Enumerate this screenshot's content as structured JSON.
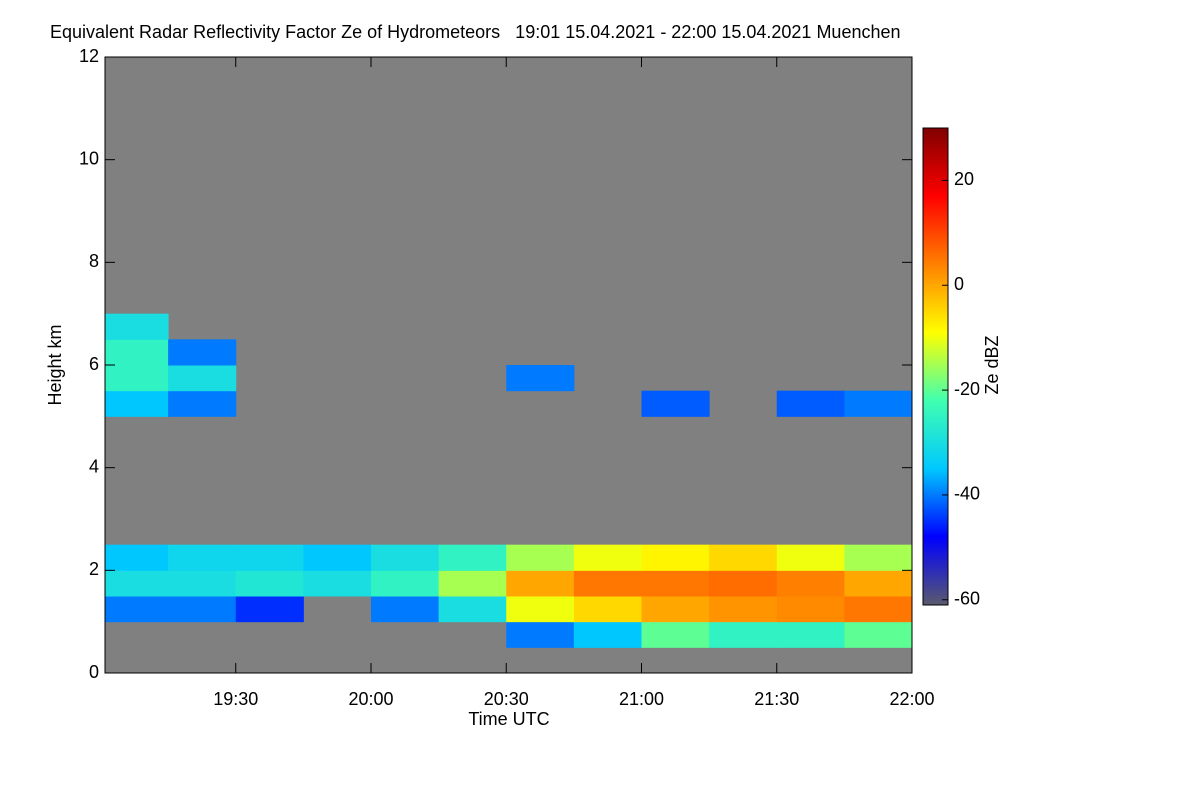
{
  "chart_data": {
    "type": "heatmap",
    "title": "Equivalent Radar Reflectivity Factor Ze of Hydrometeors   19:01 15.04.2021 - 22:00 15.04.2021 Muenchen",
    "x_label": "Time UTC",
    "y_label": "Height km",
    "colorbar_label": "Ze dBZ",
    "xlim": [
      19.0167,
      22.0
    ],
    "xticks": [
      {
        "value": 19.5,
        "label": "19:30"
      },
      {
        "value": 20.0,
        "label": "20:00"
      },
      {
        "value": 20.5,
        "label": "20:30"
      },
      {
        "value": 21.0,
        "label": "21:00"
      },
      {
        "value": 21.5,
        "label": "21:30"
      },
      {
        "value": 22.0,
        "label": "22:00"
      }
    ],
    "ylim": [
      0,
      12
    ],
    "yticks": [
      0,
      2,
      4,
      6,
      8,
      10,
      12
    ],
    "x_bins": [
      19.0,
      19.25,
      19.5,
      19.75,
      20.0,
      20.25,
      20.5,
      20.75,
      21.0,
      21.25,
      21.5,
      21.75,
      22.0
    ],
    "y_bins": [
      0,
      0.5,
      1,
      1.5,
      2,
      2.5,
      3,
      3.5,
      4,
      4.5,
      5,
      5.5,
      6,
      6.5,
      7
    ],
    "z": [
      [
        null,
        null,
        null,
        null,
        null,
        null,
        null,
        null,
        null,
        null,
        null,
        null
      ],
      [
        null,
        null,
        null,
        null,
        null,
        null,
        -40,
        -35,
        -20,
        -25,
        -25,
        -20
      ],
      [
        -40,
        -40,
        -45,
        null,
        -40,
        -30,
        -10,
        -5,
        0,
        2,
        3,
        5
      ],
      [
        -30,
        -30,
        -28,
        -30,
        -25,
        -15,
        0,
        5,
        5,
        6,
        4,
        0
      ],
      [
        -35,
        -32,
        -32,
        -35,
        -30,
        -25,
        -15,
        -10,
        -8,
        -5,
        -10,
        -15
      ],
      [
        null,
        null,
        null,
        null,
        null,
        null,
        null,
        null,
        null,
        null,
        null,
        null
      ],
      [
        null,
        null,
        null,
        null,
        null,
        null,
        null,
        null,
        null,
        null,
        null,
        null
      ],
      [
        null,
        null,
        null,
        null,
        null,
        null,
        null,
        null,
        null,
        null,
        null,
        null
      ],
      [
        null,
        null,
        null,
        null,
        null,
        null,
        null,
        null,
        null,
        null,
        null,
        null
      ],
      [
        null,
        null,
        null,
        null,
        null,
        null,
        null,
        null,
        null,
        null,
        null,
        null
      ],
      [
        -35,
        -40,
        null,
        null,
        null,
        null,
        null,
        null,
        -42,
        null,
        -42,
        -40
      ],
      [
        -25,
        -30,
        null,
        null,
        null,
        null,
        -40,
        null,
        null,
        null,
        null,
        null
      ],
      [
        -25,
        -40,
        null,
        null,
        null,
        null,
        null,
        null,
        null,
        null,
        null,
        null
      ],
      [
        -30,
        null,
        null,
        null,
        null,
        null,
        null,
        null,
        null,
        null,
        null,
        null
      ]
    ],
    "zlim": [
      -61,
      30
    ],
    "zticks": [
      -60,
      -40,
      -20,
      0,
      20
    ],
    "colormap": [
      "#5a5a6e",
      "#0000ff",
      "#00c8ff",
      "#40ffb0",
      "#ffff00",
      "#ff8000",
      "#ff0000",
      "#800000"
    ],
    "nan_color": "#808080"
  }
}
